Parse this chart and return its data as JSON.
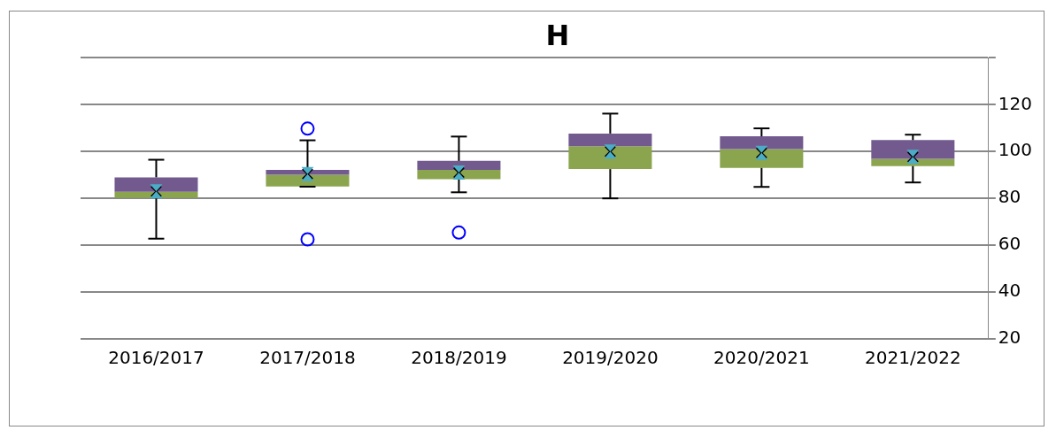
{
  "chart_data": {
    "type": "box",
    "title": "H",
    "categories": [
      "2016/2017",
      "2017/2018",
      "2018/2019",
      "2019/2020",
      "2020/2021",
      "2021/2022"
    ],
    "color": "#725a8f",
    "series": [
      {
        "color": "#8aa54e",
        "boxes": [
          {
            "low": 62.8,
            "q1": 80.2,
            "median": 82.8,
            "q3": 89,
            "high": 96.5,
            "mean": 83
          },
          {
            "low": 85,
            "q1": 85.1,
            "median": 90.1,
            "q3": 92.2,
            "high": 104.8,
            "mean": 90.4,
            "outliers": [
              109.8,
              62.5
            ]
          },
          {
            "low": 82.6,
            "q1": 88.2,
            "median": 92.2,
            "q3": 96,
            "high": 106.4,
            "mean": 91,
            "outliers": [
              65.4
            ]
          },
          {
            "low": 80,
            "q1": 92.5,
            "median": 102.3,
            "q3": 107.7,
            "high": 116.2,
            "mean": 100
          },
          {
            "low": 84.9,
            "q1": 93,
            "median": 101,
            "q3": 106.5,
            "high": 109.9,
            "mean": 99.4
          },
          {
            "low": 86.8,
            "q1": 93.8,
            "median": 96.9,
            "q3": 104.9,
            "high": 107.2,
            "mean": 97.7
          }
        ]
      }
    ],
    "ylim": [
      20,
      140
    ],
    "yticks": [
      20,
      40,
      60,
      80,
      100,
      120,
      {
        "value": 140,
        "label": null
      }
    ],
    "grid": "y",
    "legend": false
  }
}
